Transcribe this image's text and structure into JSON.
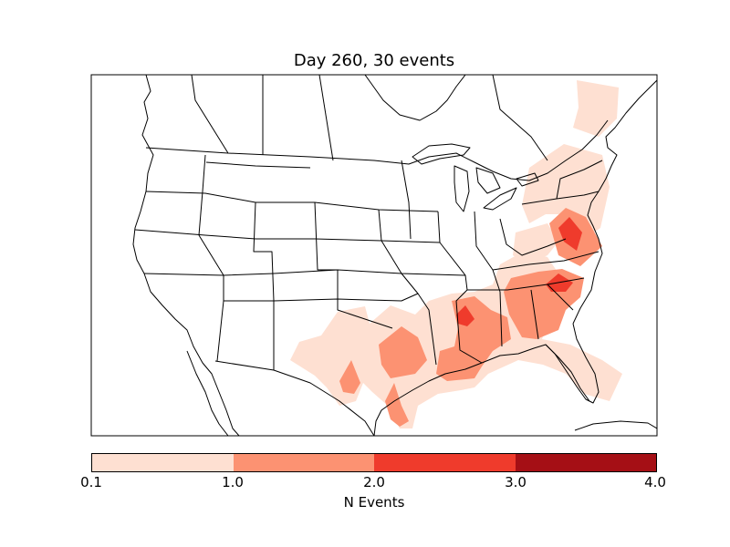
{
  "title": "Day 260, 30 events",
  "colorbar": {
    "label": "N Events",
    "ticks": [
      "0.1",
      "1.0",
      "2.0",
      "3.0",
      "4.0"
    ],
    "colors": [
      "#fee0d2",
      "#fc9272",
      "#ef3b2c",
      "#a50f15"
    ]
  },
  "map": {
    "region": "continental-us",
    "palette": {
      "land_line": "#000000",
      "level1": "#fee0d2",
      "level2": "#fc9272",
      "level3": "#ef3b2c",
      "level4": "#a50f15"
    }
  }
}
